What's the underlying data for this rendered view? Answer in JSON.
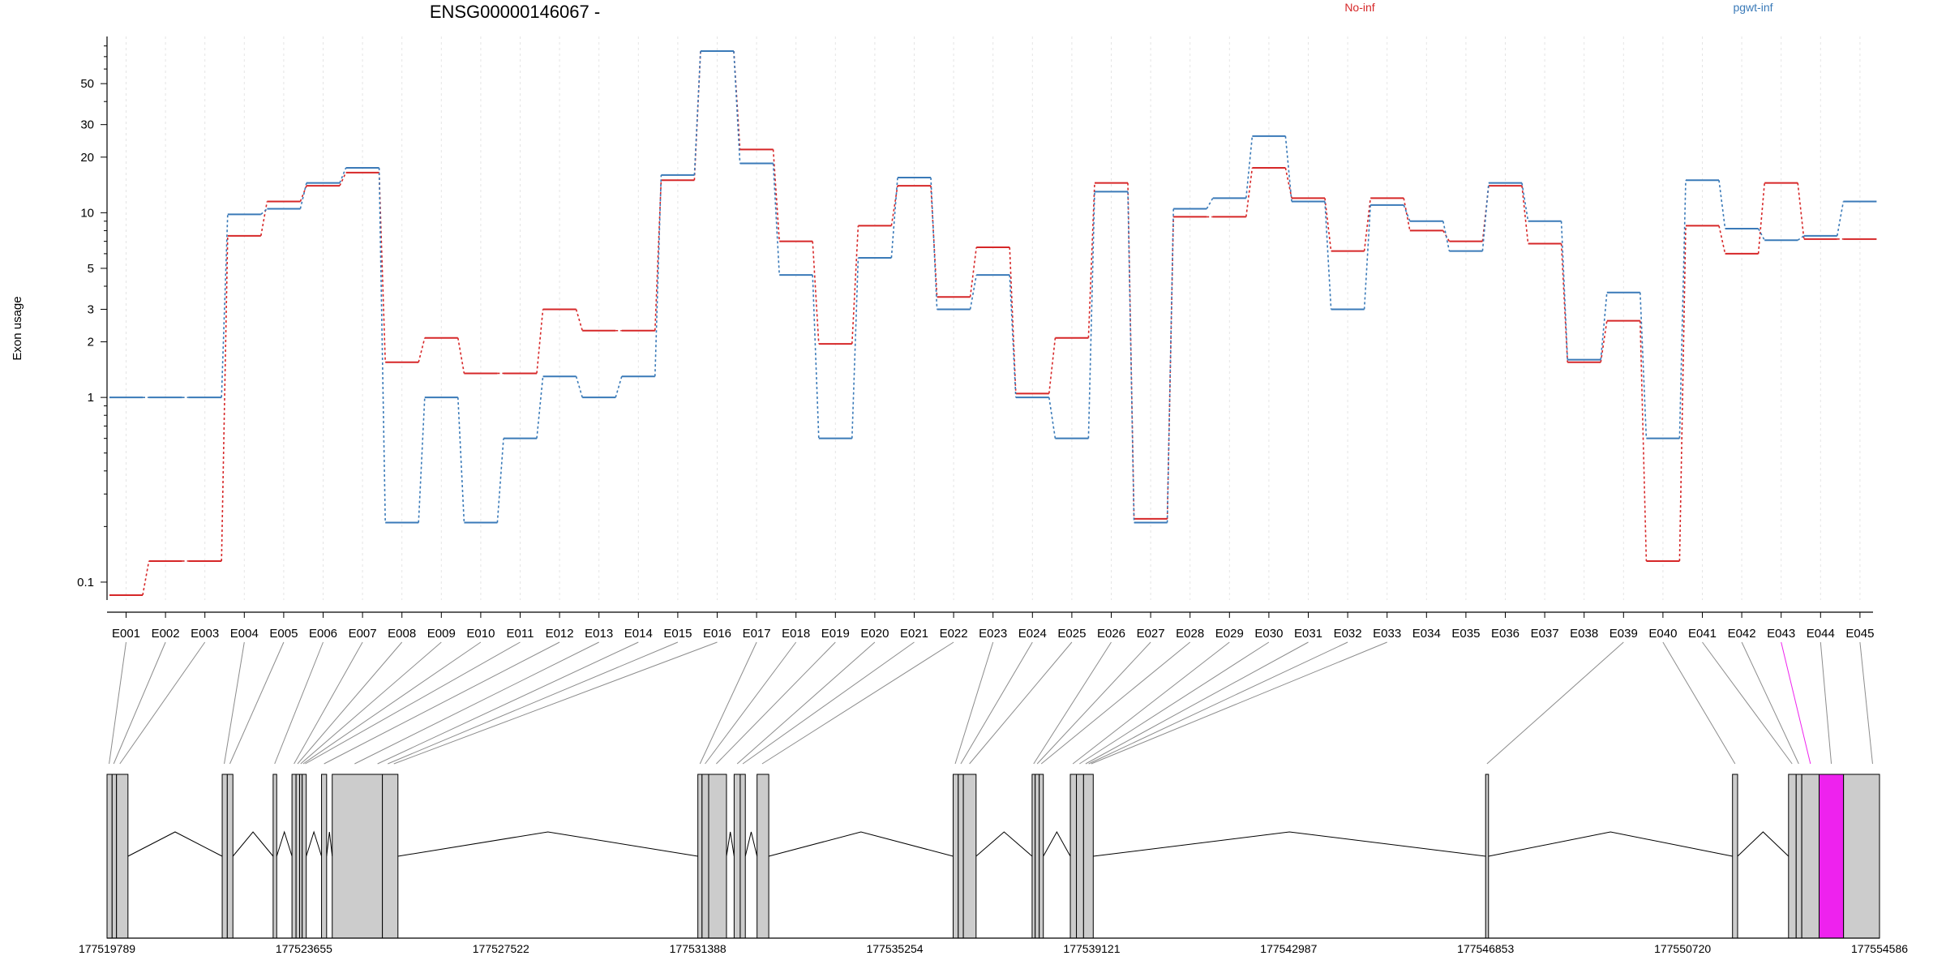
{
  "chart_data": {
    "type": "line",
    "title": "ENSG00000146067 -",
    "ylabel": "Exon usage",
    "y_scale": "log",
    "ylim": [
      0.08,
      90
    ],
    "y_ticks": [
      0.1,
      1,
      2,
      3,
      5,
      10,
      20,
      30,
      50
    ],
    "y_tick_labels": [
      "0.1",
      "1",
      "2",
      "3",
      "5",
      "10",
      "20",
      "30",
      "50"
    ],
    "grid": "vertical dashed lines at each exon",
    "legend_placement": "top",
    "categories": [
      "E001",
      "E002",
      "E003",
      "E004",
      "E005",
      "E006",
      "E007",
      "E008",
      "E009",
      "E010",
      "E011",
      "E012",
      "E013",
      "E014",
      "E015",
      "E016",
      "E017",
      "E018",
      "E019",
      "E020",
      "E021",
      "E022",
      "E023",
      "E024",
      "E025",
      "E026",
      "E027",
      "E028",
      "E029",
      "E030",
      "E031",
      "E032",
      "E033",
      "E034",
      "E035",
      "E036",
      "E037",
      "E038",
      "E039",
      "E040",
      "E041",
      "E042",
      "E043",
      "E044",
      "E045"
    ],
    "series": [
      {
        "name": "No-inf",
        "color": "#d62728",
        "values": [
          0.085,
          0.13,
          0.13,
          7.5,
          11.5,
          14,
          16.5,
          1.55,
          2.1,
          1.35,
          1.35,
          3,
          2.3,
          2.3,
          15,
          75,
          22,
          7,
          1.95,
          8.5,
          14,
          3.5,
          6.5,
          1.05,
          2.1,
          14.5,
          0.22,
          9.5,
          9.5,
          17.5,
          12,
          6.2,
          12,
          8,
          7,
          14,
          6.8,
          1.55,
          2.6,
          0.13,
          8.5,
          6,
          14.5,
          7.2,
          7.2
        ]
      },
      {
        "name": "pgwt-inf",
        "color": "#3a7ab8",
        "values": [
          1,
          1,
          1,
          9.8,
          10.5,
          14.5,
          17.5,
          0.21,
          1,
          0.21,
          0.6,
          1.3,
          1,
          1.3,
          16,
          75,
          18.5,
          4.6,
          0.6,
          5.7,
          15.5,
          3,
          4.6,
          1,
          0.6,
          13,
          0.21,
          10.5,
          12,
          26,
          11.5,
          3,
          11,
          9,
          6.2,
          14.5,
          9,
          1.6,
          3.7,
          0.6,
          15,
          8.2,
          7.1,
          7.5,
          11.5
        ]
      }
    ],
    "gene_model": {
      "coordinate_labels": [
        "177519789",
        "177523655",
        "177527522",
        "177531388",
        "177535254",
        "177539121",
        "177542987",
        "177546853",
        "177550720",
        "177554586"
      ],
      "x_range": [
        177519789,
        177554586
      ],
      "highlight_color": "#ee22ee",
      "box_color": "#cccccc",
      "exons": [
        [
          177519789,
          177519889
        ],
        [
          177519889,
          177519975
        ],
        [
          177519975,
          177520200
        ],
        [
          177522050,
          177522150
        ],
        [
          177522150,
          177522260
        ],
        [
          177523050,
          177523120
        ],
        [
          177523420,
          177523500
        ],
        [
          177523500,
          177523570
        ],
        [
          177523570,
          177523620
        ],
        [
          177523620,
          177523700
        ],
        [
          177524000,
          177524100
        ],
        [
          177524210,
          177525195
        ],
        [
          177525195,
          177525500
        ],
        [
          177531388,
          177531470
        ],
        [
          177531470,
          177531600
        ],
        [
          177531600,
          177531950
        ],
        [
          177532100,
          177532220
        ],
        [
          177532220,
          177532320
        ],
        [
          177532550,
          177532780
        ],
        [
          177536400,
          177536500
        ],
        [
          177536500,
          177536600
        ],
        [
          177536600,
          177536850
        ],
        [
          177537950,
          177538010
        ],
        [
          177538010,
          177538090
        ],
        [
          177538090,
          177538170
        ],
        [
          177538700,
          177538820
        ],
        [
          177538820,
          177538960
        ],
        [
          177538960,
          177539150
        ],
        [
          177546853,
          177546910
        ],
        [
          177551700,
          177551800
        ],
        [
          177552800,
          177552950
        ],
        [
          177552950,
          177553060
        ],
        [
          177553060,
          177553400
        ],
        [
          177553400,
          177553880
        ],
        [
          177553880,
          177554586
        ]
      ],
      "highlight_exon_index": 33,
      "links": [
        {
          "exon": "E001",
          "pos": 177519830
        },
        {
          "exon": "E002",
          "pos": 177519920
        },
        {
          "exon": "E003",
          "pos": 177520040
        },
        {
          "exon": "E004",
          "pos": 177522090
        },
        {
          "exon": "E005",
          "pos": 177522200
        },
        {
          "exon": "E006",
          "pos": 177523080
        },
        {
          "exon": "E007",
          "pos": 177523460
        },
        {
          "exon": "E008",
          "pos": 177523530
        },
        {
          "exon": "E009",
          "pos": 177523590
        },
        {
          "exon": "E010",
          "pos": 177523640
        },
        {
          "exon": "E011",
          "pos": 177523680
        },
        {
          "exon": "E012",
          "pos": 177524050
        },
        {
          "exon": "E013",
          "pos": 177524650
        },
        {
          "exon": "E014",
          "pos": 177525100
        },
        {
          "exon": "E015",
          "pos": 177525300
        },
        {
          "exon": "E016",
          "pos": 177525420
        },
        {
          "exon": "E017",
          "pos": 177531430
        },
        {
          "exon": "E018",
          "pos": 177531530
        },
        {
          "exon": "E019",
          "pos": 177531750
        },
        {
          "exon": "E020",
          "pos": 177532160
        },
        {
          "exon": "E021",
          "pos": 177532270
        },
        {
          "exon": "E022",
          "pos": 177532650
        },
        {
          "exon": "E023",
          "pos": 177536440
        },
        {
          "exon": "E024",
          "pos": 177536550
        },
        {
          "exon": "E025",
          "pos": 177536720
        },
        {
          "exon": "E026",
          "pos": 177537980
        },
        {
          "exon": "E027",
          "pos": 177538050
        },
        {
          "exon": "E028",
          "pos": 177538130
        },
        {
          "exon": "E029",
          "pos": 177538750
        },
        {
          "exon": "E030",
          "pos": 177538880
        },
        {
          "exon": "E031",
          "pos": 177539000
        },
        {
          "exon": "E032",
          "pos": 177539060
        },
        {
          "exon": "E033",
          "pos": 177539110
        },
        {
          "exon": "E039",
          "pos": 177546880
        },
        {
          "exon": "E040",
          "pos": 177551750
        },
        {
          "exon": "E041",
          "pos": 177552870
        },
        {
          "exon": "E042",
          "pos": 177553000
        },
        {
          "exon": "E043",
          "pos": 177553230
        },
        {
          "exon": "E044",
          "pos": 177553640
        },
        {
          "exon": "E045",
          "pos": 177554450
        }
      ]
    }
  }
}
